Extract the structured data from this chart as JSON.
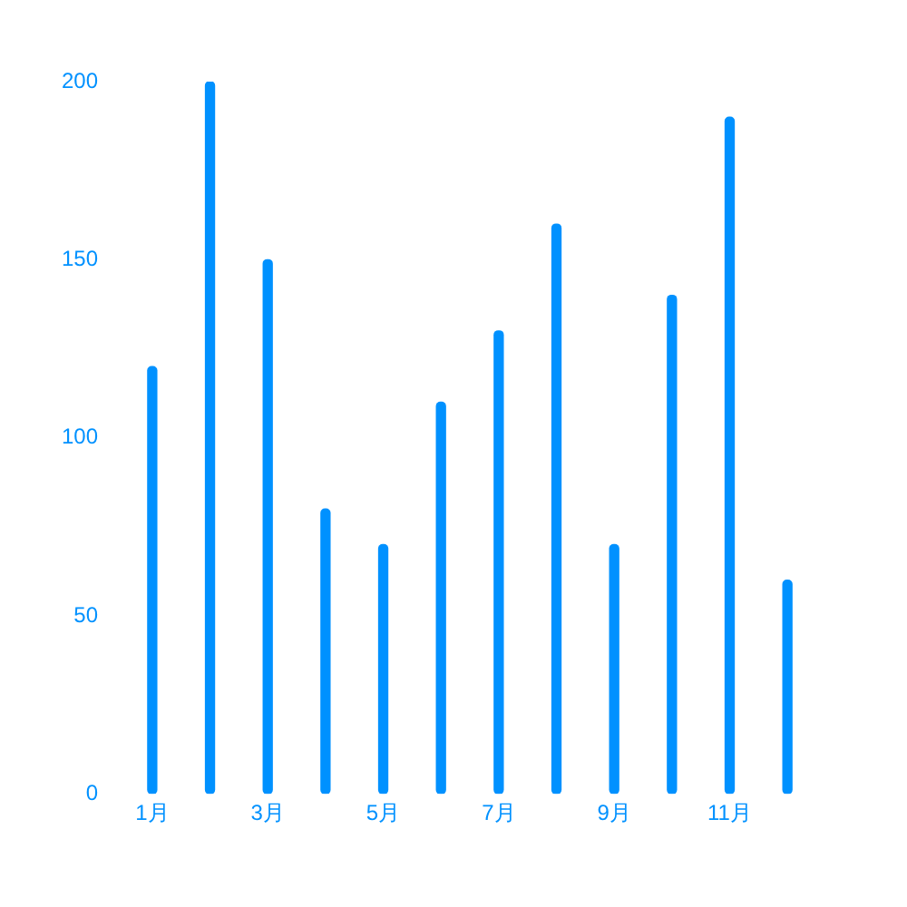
{
  "chart_data": {
    "type": "bar",
    "categories": [
      "1月",
      null,
      "3月",
      null,
      "5月",
      null,
      "7月",
      null,
      "9月",
      null,
      "11月",
      null
    ],
    "values": [
      120,
      200,
      150,
      80,
      70,
      110,
      130,
      160,
      70,
      140,
      190,
      60
    ],
    "color": "#0091ff",
    "ylim": [
      0,
      200
    ],
    "yticks": [
      0,
      50,
      100,
      150,
      200
    ],
    "grid": false,
    "legend": false
  }
}
